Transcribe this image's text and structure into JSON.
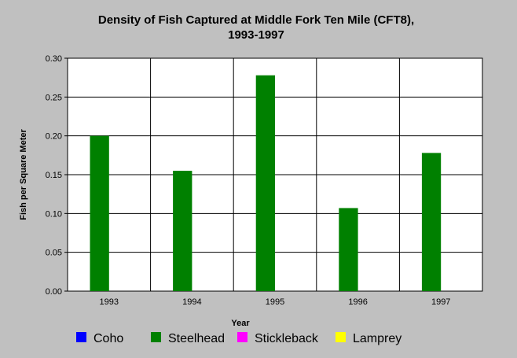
{
  "chart_data": {
    "type": "bar",
    "title_lines": [
      "Density of Fish Captured at Middle Fork Ten Mile (CFT8),",
      "1993-1997"
    ],
    "xlabel": "Year",
    "ylabel": "Fish per Square Meter",
    "categories": [
      "1993",
      "1994",
      "1995",
      "1996",
      "1997"
    ],
    "ylim": [
      0,
      0.3
    ],
    "yticks": [
      "0.00",
      "0.05",
      "0.10",
      "0.15",
      "0.20",
      "0.25",
      "0.30"
    ],
    "grid": true,
    "legend_position": "bottom",
    "series": [
      {
        "name": "Coho",
        "color": "#0000ff",
        "values": [
          0,
          0,
          0,
          0,
          0
        ]
      },
      {
        "name": "Steelhead",
        "color": "#008000",
        "values": [
          0.2,
          0.155,
          0.278,
          0.107,
          0.178
        ]
      },
      {
        "name": "Stickleback",
        "color": "#ff00ff",
        "values": [
          0,
          0,
          0,
          0,
          0
        ]
      },
      {
        "name": "Lamprey",
        "color": "#ffff00",
        "values": [
          0,
          0,
          0,
          0,
          0
        ]
      }
    ]
  }
}
